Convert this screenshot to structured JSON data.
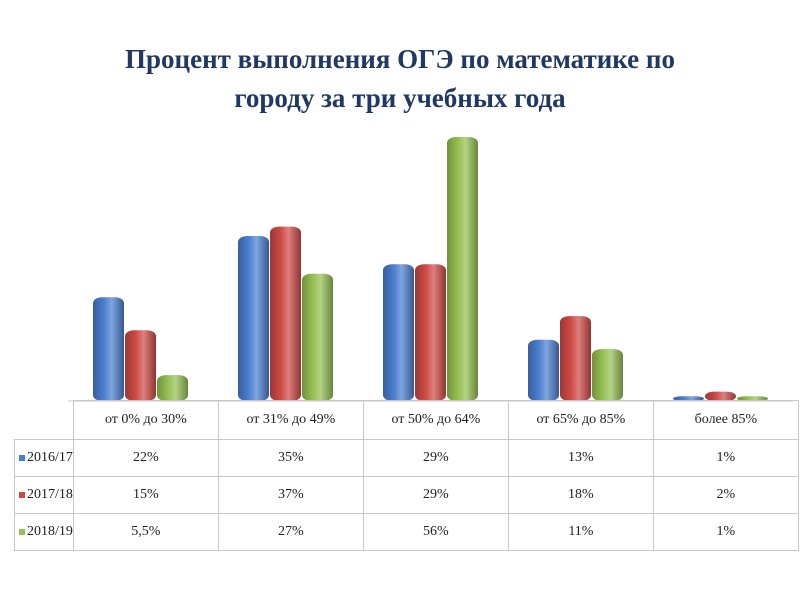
{
  "title_lines": [
    "Процент выполнения ОГЭ по математике по",
    "городу за три учебных года"
  ],
  "colors": {
    "2016/17": "#4a7fd0",
    "2017/18": "#cf4a46",
    "2018/19": "#95c052"
  },
  "chart_data": {
    "type": "bar",
    "title": "Процент выполнения ОГЭ по математике по городу за три учебных года",
    "categories": [
      "от 0% до 30%",
      "от 31% до 49%",
      "от 50% до 64%",
      "от 65% до 85%",
      "более 85%"
    ],
    "series": [
      {
        "name": "2016/17",
        "values": [
          22,
          35,
          29,
          13,
          1
        ],
        "labels": [
          "22%",
          "35%",
          "29%",
          "13%",
          "1%"
        ]
      },
      {
        "name": "2017/18",
        "values": [
          15,
          37,
          29,
          18,
          2
        ],
        "labels": [
          "15%",
          "37%",
          "29%",
          "18%",
          "2%"
        ]
      },
      {
        "name": "2018/19",
        "values": [
          5.5,
          27,
          56,
          11,
          1
        ],
        "labels": [
          "5,5%",
          "27%",
          "56%",
          "11%",
          "1%"
        ]
      }
    ],
    "legend": "data table below chart",
    "grid": false
  }
}
